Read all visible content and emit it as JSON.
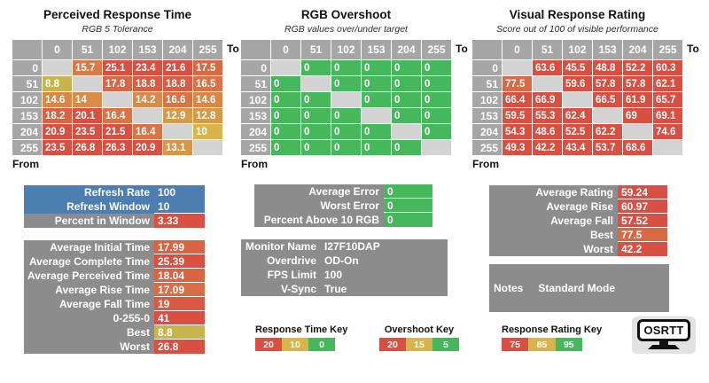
{
  "colors": {
    "background": "#ffffff",
    "header_gray": "#a6a6a6",
    "blank_cell_gray": "#d3d3d3",
    "panel_gray": "#8c8c8c",
    "blue": "#4d7eb2",
    "red": "#d95043",
    "gold": "#d9b44a",
    "green": "#45b85c",
    "logo_bg": "#e2e2e2"
  },
  "scales": {
    "time": [
      [
        0,
        "#45b85c"
      ],
      [
        10,
        "#d9b44a"
      ],
      [
        20,
        "#d95043"
      ]
    ],
    "overshoot": [
      [
        5,
        "#45b85c"
      ],
      [
        15,
        "#d9b44a"
      ],
      [
        20,
        "#d95043"
      ]
    ],
    "rating": [
      [
        75,
        "#d95043"
      ],
      [
        85,
        "#d9b44a"
      ],
      [
        95,
        "#45b85c"
      ]
    ]
  },
  "axis": {
    "to": "To",
    "from": "From"
  },
  "heatmaps": [
    {
      "title": "Perceived Response Time",
      "subtitle": "RGB 5 Tolerance",
      "scale": "time",
      "columns": [
        "0",
        "51",
        "102",
        "153",
        "204",
        "255"
      ],
      "rows": [
        "0",
        "51",
        "102",
        "153",
        "204",
        "255"
      ],
      "cells": [
        [
          null,
          15.7,
          25.1,
          23.4,
          21.6,
          17.5
        ],
        [
          8.8,
          null,
          17.8,
          18.8,
          18.8,
          16.5
        ],
        [
          14.6,
          14,
          null,
          14.2,
          16.6,
          14.6
        ],
        [
          18.2,
          20.1,
          16.4,
          null,
          12.9,
          12.8
        ],
        [
          20.9,
          23.5,
          21.5,
          16.4,
          null,
          10
        ],
        [
          23.5,
          26.8,
          26.3,
          20.9,
          13.1,
          null
        ]
      ]
    },
    {
      "title": "RGB Overshoot",
      "subtitle": "RGB values over/under target",
      "scale": "overshoot",
      "columns": [
        "0",
        "51",
        "102",
        "153",
        "204",
        "255"
      ],
      "rows": [
        "0",
        "51",
        "102",
        "153",
        "204",
        "255"
      ],
      "cells": [
        [
          null,
          0,
          0,
          0,
          0,
          0
        ],
        [
          0,
          null,
          0,
          0,
          0,
          0
        ],
        [
          0,
          0,
          null,
          0,
          0,
          0
        ],
        [
          0,
          0,
          0,
          null,
          0,
          0
        ],
        [
          0,
          0,
          0,
          0,
          null,
          0
        ],
        [
          0,
          0,
          0,
          0,
          0,
          null
        ]
      ]
    },
    {
      "title": "Visual Response Rating",
      "subtitle": "Score out of 100 of visible performance",
      "scale": "rating",
      "columns": [
        "0",
        "51",
        "102",
        "153",
        "204",
        "255"
      ],
      "rows": [
        "0",
        "51",
        "102",
        "153",
        "204",
        "255"
      ],
      "cells": [
        [
          null,
          63.6,
          45.5,
          48.8,
          52.2,
          60.3
        ],
        [
          77.5,
          null,
          59.6,
          57.8,
          57.8,
          62.1
        ],
        [
          66.4,
          66.9,
          null,
          66.5,
          61.9,
          65.7
        ],
        [
          59.5,
          55.3,
          62.4,
          null,
          69,
          69.1
        ],
        [
          54.3,
          48.6,
          52.5,
          62.2,
          null,
          74.6
        ],
        [
          49.3,
          42.2,
          43.4,
          53.7,
          68.6,
          null
        ]
      ]
    }
  ],
  "panels": [
    {
      "rows": [
        {
          "label": "Refresh Rate",
          "value": "100",
          "row_bg": "#4d7eb2"
        },
        {
          "label": "Refresh Window",
          "value": "10",
          "row_bg": "#4d7eb2"
        },
        {
          "label": "Percent in Window",
          "value": "3.33",
          "value_bg": "#d95043"
        }
      ]
    },
    {
      "rows": [
        {
          "label": "Average Initial Time",
          "value": "17.99",
          "scale": "time",
          "num": 17.99
        },
        {
          "label": "Average Complete Time",
          "value": "25.39",
          "scale": "time",
          "num": 25.39
        },
        {
          "label": "Average Perceived Time",
          "value": "18.04",
          "scale": "time",
          "num": 18.04
        },
        {
          "label": "Average Rise Time",
          "value": "17.09",
          "scale": "time",
          "num": 17.09
        },
        {
          "label": "Average Fall Time",
          "value": "19",
          "scale": "time",
          "num": 19
        },
        {
          "label": "0-255-0",
          "value": "41",
          "scale": "time",
          "num": 41
        },
        {
          "label": "Best",
          "value": "8.8",
          "scale": "time",
          "num": 8.8
        },
        {
          "label": "Worst",
          "value": "26.8",
          "scale": "time",
          "num": 26.8
        }
      ]
    },
    {
      "rows": [
        {
          "label": "Average Error",
          "value": "0",
          "scale": "overshoot",
          "num": 0
        },
        {
          "label": "Worst Error",
          "value": "0",
          "scale": "overshoot",
          "num": 0
        },
        {
          "label": "Percent Above 10 RGB",
          "value": "0",
          "scale": "overshoot",
          "num": 0
        }
      ]
    },
    {
      "rows": [
        {
          "label": "Monitor Name",
          "value": "I27F10DAP"
        },
        {
          "label": "Overdrive",
          "value": "OD-On"
        },
        {
          "label": "FPS Limit",
          "value": "100"
        },
        {
          "label": "V-Sync",
          "value": "True"
        }
      ]
    },
    {
      "rows": [
        {
          "label": "Average Rating",
          "value": "59.24",
          "scale": "rating",
          "num": 59.24
        },
        {
          "label": "Average Rise",
          "value": "60.97",
          "scale": "rating",
          "num": 60.97
        },
        {
          "label": "Average Fall",
          "value": "57.52",
          "scale": "rating",
          "num": 57.52
        },
        {
          "label": "Best",
          "value": "77.5",
          "scale": "rating",
          "num": 77.5
        },
        {
          "label": "Worst",
          "value": "42.2",
          "scale": "rating",
          "num": 42.2
        }
      ]
    },
    {
      "rows": [
        {
          "label": "Notes",
          "value": "Standard Mode"
        }
      ]
    }
  ],
  "keys": [
    {
      "title": "Response Time Key",
      "entries": [
        {
          "label": "20",
          "color": "#d95043"
        },
        {
          "label": "10",
          "color": "#d9b44a"
        },
        {
          "label": "0",
          "color": "#45b85c"
        }
      ]
    },
    {
      "title": "Overshoot Key",
      "entries": [
        {
          "label": "20",
          "color": "#d95043"
        },
        {
          "label": "15",
          "color": "#d9b44a"
        },
        {
          "label": "5",
          "color": "#45b85c"
        }
      ]
    },
    {
      "title": "Response Rating Key",
      "entries": [
        {
          "label": "75",
          "color": "#d95043"
        },
        {
          "label": "85",
          "color": "#d9b44a"
        },
        {
          "label": "95",
          "color": "#45b85c"
        }
      ]
    }
  ],
  "logo": {
    "text": "OSRTT"
  }
}
